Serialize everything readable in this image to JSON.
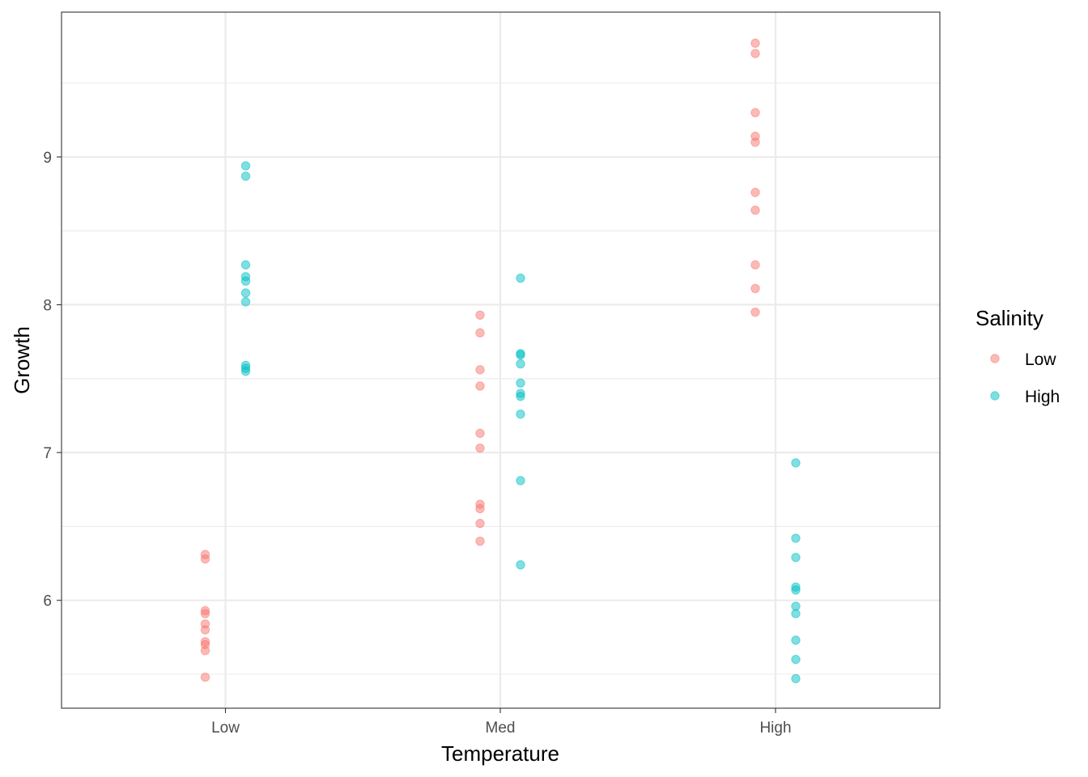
{
  "chart_data": {
    "type": "scatter",
    "xlabel": "Temperature",
    "ylabel": "Growth",
    "categories": [
      "Low",
      "Med",
      "High"
    ],
    "ylim": [
      5.27,
      9.98
    ],
    "y_ticks": [
      6,
      7,
      8,
      9
    ],
    "y_tick_labels": [
      "6",
      "7",
      "8",
      "9"
    ],
    "grid": true,
    "legend": {
      "title": "Salinity",
      "position": "right"
    },
    "point_alpha": 0.5,
    "series": [
      {
        "name": "Low",
        "color": "#F8766D",
        "points": [
          {
            "x": "Low",
            "y": 6.31
          },
          {
            "x": "Low",
            "y": 6.28
          },
          {
            "x": "Low",
            "y": 5.93
          },
          {
            "x": "Low",
            "y": 5.91
          },
          {
            "x": "Low",
            "y": 5.84
          },
          {
            "x": "Low",
            "y": 5.8
          },
          {
            "x": "Low",
            "y": 5.72
          },
          {
            "x": "Low",
            "y": 5.7
          },
          {
            "x": "Low",
            "y": 5.66
          },
          {
            "x": "Low",
            "y": 5.48
          },
          {
            "x": "Med",
            "y": 7.93
          },
          {
            "x": "Med",
            "y": 7.81
          },
          {
            "x": "Med",
            "y": 7.56
          },
          {
            "x": "Med",
            "y": 7.45
          },
          {
            "x": "Med",
            "y": 7.13
          },
          {
            "x": "Med",
            "y": 7.03
          },
          {
            "x": "Med",
            "y": 6.65
          },
          {
            "x": "Med",
            "y": 6.62
          },
          {
            "x": "Med",
            "y": 6.52
          },
          {
            "x": "Med",
            "y": 6.4
          },
          {
            "x": "High",
            "y": 9.77
          },
          {
            "x": "High",
            "y": 9.7
          },
          {
            "x": "High",
            "y": 9.3
          },
          {
            "x": "High",
            "y": 9.14
          },
          {
            "x": "High",
            "y": 9.1
          },
          {
            "x": "High",
            "y": 8.76
          },
          {
            "x": "High",
            "y": 8.64
          },
          {
            "x": "High",
            "y": 8.27
          },
          {
            "x": "High",
            "y": 8.11
          },
          {
            "x": "High",
            "y": 7.95
          }
        ]
      },
      {
        "name": "High",
        "color": "#00BFC4",
        "points": [
          {
            "x": "Low",
            "y": 8.94
          },
          {
            "x": "Low",
            "y": 8.87
          },
          {
            "x": "Low",
            "y": 8.27
          },
          {
            "x": "Low",
            "y": 8.19
          },
          {
            "x": "Low",
            "y": 8.16
          },
          {
            "x": "Low",
            "y": 8.08
          },
          {
            "x": "Low",
            "y": 8.02
          },
          {
            "x": "Low",
            "y": 7.59
          },
          {
            "x": "Low",
            "y": 7.57
          },
          {
            "x": "Low",
            "y": 7.55
          },
          {
            "x": "Med",
            "y": 8.18
          },
          {
            "x": "Med",
            "y": 7.67
          },
          {
            "x": "Med",
            "y": 7.66
          },
          {
            "x": "Med",
            "y": 7.6
          },
          {
            "x": "Med",
            "y": 7.47
          },
          {
            "x": "Med",
            "y": 7.4
          },
          {
            "x": "Med",
            "y": 7.38
          },
          {
            "x": "Med",
            "y": 7.26
          },
          {
            "x": "Med",
            "y": 6.81
          },
          {
            "x": "Med",
            "y": 6.24
          },
          {
            "x": "High",
            "y": 6.93
          },
          {
            "x": "High",
            "y": 6.42
          },
          {
            "x": "High",
            "y": 6.29
          },
          {
            "x": "High",
            "y": 6.09
          },
          {
            "x": "High",
            "y": 6.07
          },
          {
            "x": "High",
            "y": 5.96
          },
          {
            "x": "High",
            "y": 5.91
          },
          {
            "x": "High",
            "y": 5.73
          },
          {
            "x": "High",
            "y": 5.6
          },
          {
            "x": "High",
            "y": 5.47
          }
        ]
      }
    ]
  }
}
